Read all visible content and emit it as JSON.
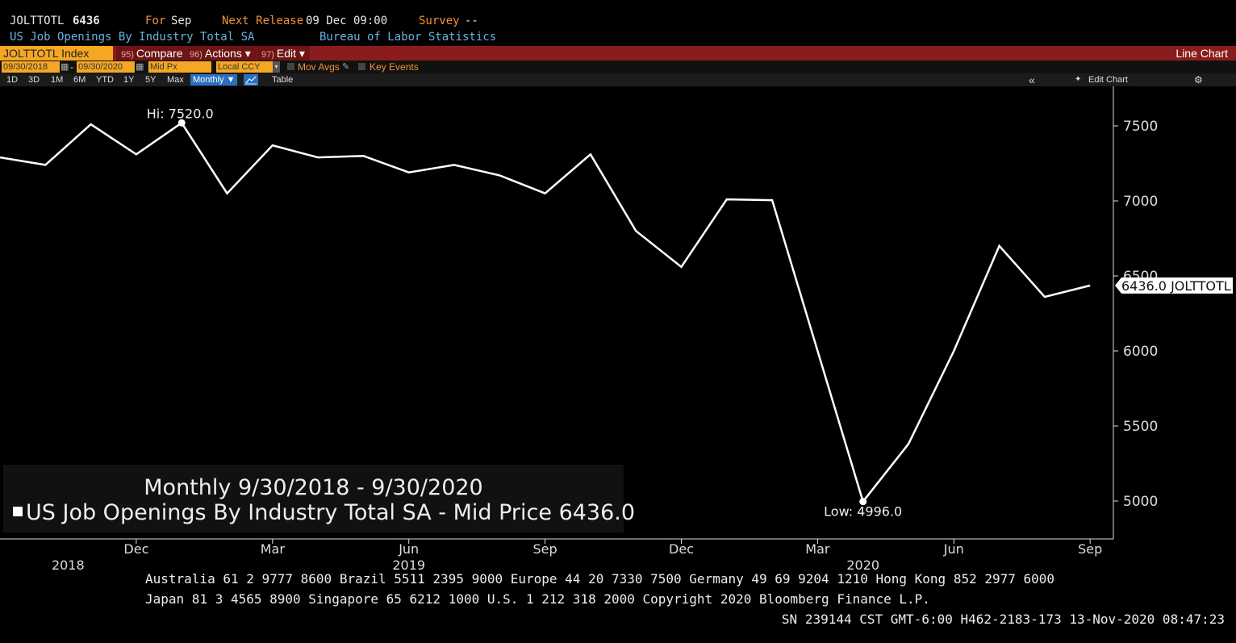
{
  "header": {
    "ticker": "JOLTTOTL",
    "last_value": "6436",
    "for_label": "For",
    "for_value": "Sep",
    "next_release_label": "Next Release",
    "next_release_value": "09 Dec 09:00",
    "survey_label": "Survey",
    "survey_value": "--",
    "description": "US Job Openings By Industry Total SA",
    "source": "Bureau of Labor Statistics"
  },
  "command_bar": {
    "security": "JOLTTOTL Index",
    "compare": {
      "num": "95)",
      "label": "Compare"
    },
    "actions": {
      "num": "96)",
      "label": "Actions ▾"
    },
    "edit": {
      "num": "97)",
      "label": "Edit ▾"
    },
    "chart_type": "Line Chart"
  },
  "settings_bar": {
    "start_date": "09/30/2018",
    "end_date": "09/30/2020",
    "price_field": "Mid Px",
    "currency": "Local CCY",
    "mov_avgs": "Mov Avgs",
    "key_events": "Key Events"
  },
  "period_bar": {
    "periods": [
      "1D",
      "3D",
      "1M",
      "6M",
      "YTD",
      "1Y",
      "5Y",
      "Max"
    ],
    "frequency": "Monthly ▼",
    "table": "Table",
    "collapse": "«",
    "edit_chart": "Edit Chart",
    "settings_icon": "⚙"
  },
  "legend": {
    "title": "Monthly 9/30/2018 - 9/30/2020",
    "series_label": "US Job Openings By Industry Total SA - Mid Price",
    "series_value": "6436.0"
  },
  "footer": {
    "line1": "Australia 61 2 9777 8600 Brazil 5511 2395 9000 Europe 44 20 7330 7500 Germany 49 69 9204 1210 Hong Kong 852 2977 6000",
    "line2": "Japan 81 3 4565 8900       Singapore 65 6212 1000       U.S. 1 212 318 2000        Copyright 2020 Bloomberg Finance L.P.",
    "line3": "SN 239144 CST  GMT-6:00 H462-2183-173 13-Nov-2020 08:47:23"
  },
  "chart_data": {
    "type": "line",
    "x": [
      "2018-09",
      "2018-10",
      "2018-11",
      "2018-12",
      "2019-01",
      "2019-02",
      "2019-03",
      "2019-04",
      "2019-05",
      "2019-06",
      "2019-07",
      "2019-08",
      "2019-09",
      "2019-10",
      "2019-11",
      "2019-12",
      "2020-01",
      "2020-02",
      "2020-03",
      "2020-04",
      "2020-05",
      "2020-06",
      "2020-07",
      "2020-08",
      "2020-09"
    ],
    "series": [
      {
        "values": [
          7290,
          7240,
          7510,
          7310,
          7520,
          7050,
          7370,
          7290,
          7300,
          7190,
          7240,
          7170,
          7050,
          7310,
          6800,
          6560,
          7010,
          7005,
          6000,
          4996,
          5380,
          6000,
          6700,
          6360,
          6436
        ]
      }
    ],
    "ylim": [
      4800,
      7700
    ],
    "yticks": [
      5000,
      5500,
      6000,
      6500,
      7000,
      7500
    ],
    "y_tick_labels": [
      "5000",
      "5500",
      "6000",
      "6500",
      "7000",
      "7500"
    ],
    "x_month_labels": [
      {
        "x": "2018-12",
        "label": "Dec"
      },
      {
        "x": "2019-03",
        "label": "Mar"
      },
      {
        "x": "2019-06",
        "label": "Jun"
      },
      {
        "x": "2019-09",
        "label": "Sep"
      },
      {
        "x": "2019-12",
        "label": "Dec"
      },
      {
        "x": "2020-03",
        "label": "Mar"
      },
      {
        "x": "2020-06",
        "label": "Jun"
      },
      {
        "x": "2020-09",
        "label": "Sep"
      }
    ],
    "x_year_labels": [
      {
        "x": "2018-10",
        "label": "2018"
      },
      {
        "x": "2019-06",
        "label": "2019"
      },
      {
        "x": "2020-04",
        "label": "2020"
      }
    ],
    "annotations": {
      "high": {
        "label": "Hi: 7520.0",
        "x": "2019-01",
        "value": 7520
      },
      "low": {
        "label": "Low: 4996.0",
        "x": "2020-04",
        "value": 4996
      },
      "last": {
        "label": "6436.0 JOLTTOTL",
        "value": 6436
      }
    },
    "line_color": "#ffffff"
  }
}
